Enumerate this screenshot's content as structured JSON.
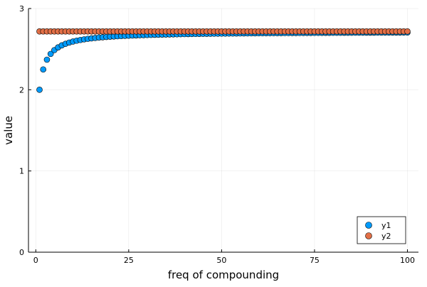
{
  "chart_data": {
    "type": "scatter",
    "title": "",
    "xlabel": "freq of compounding",
    "ylabel": "value",
    "xlim": [
      -1.97,
      102.97
    ],
    "ylim": [
      0,
      3
    ],
    "xticks": [
      0,
      25,
      50,
      75,
      100
    ],
    "xtick_labels": [
      "0",
      "25",
      "50",
      "75",
      "100"
    ],
    "yticks": [
      0,
      1,
      2,
      3
    ],
    "ytick_labels": [
      "0",
      "1",
      "2",
      "3"
    ],
    "grid": true,
    "legend_position": "bottom-right",
    "n": 100,
    "series": [
      {
        "name": "y1",
        "color": "#009AFA",
        "values_rule": "y = (1 + 1/x)^x for x = 1..100",
        "x_start": 1,
        "x_end": 100
      },
      {
        "name": "y2",
        "color": "#E26F46",
        "values_rule": "y = e ≈ 2.71828 for x = 1..100",
        "x_start": 1,
        "x_end": 100
      }
    ]
  }
}
